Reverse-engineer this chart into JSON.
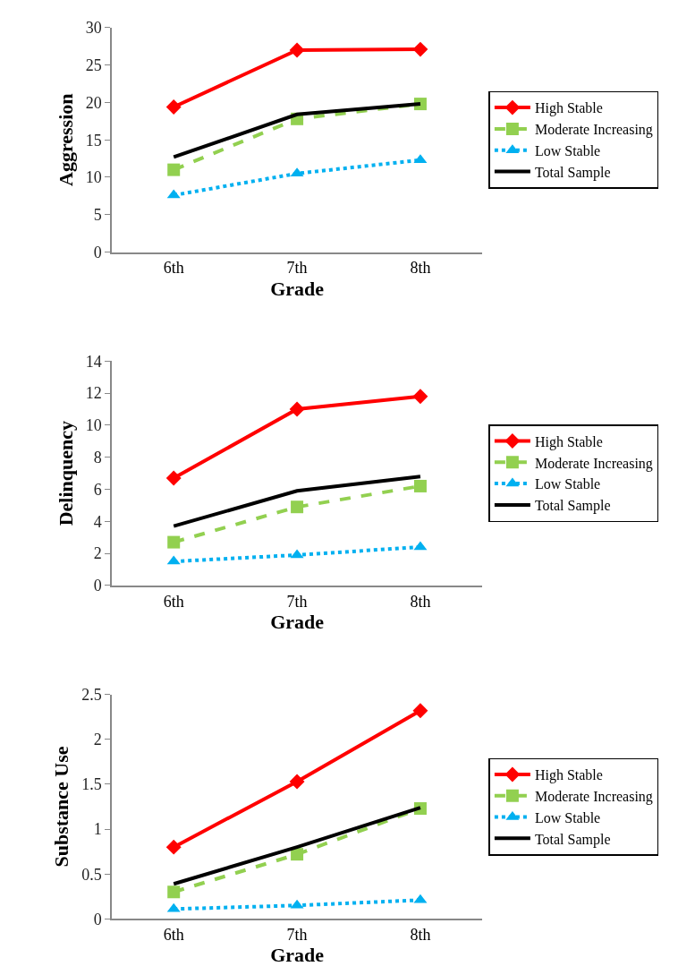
{
  "chart_data": [
    {
      "type": "line",
      "xlabel": "Grade",
      "ylabel": "Aggression",
      "categories": [
        "6th",
        "7th",
        "8th"
      ],
      "ylim": [
        0,
        30
      ],
      "yticks": [
        0,
        5,
        10,
        15,
        20,
        25,
        30
      ],
      "legend": "right",
      "series": [
        {
          "name": "High Stable",
          "color": "#ff0000",
          "marker": "diamond",
          "line_style": "solid",
          "values": [
            19.4,
            27.0,
            27.1
          ]
        },
        {
          "name": "Moderate Increasing",
          "color": "#92d050",
          "marker": "square",
          "line_style": "dashed",
          "values": [
            11.0,
            17.8,
            19.8
          ]
        },
        {
          "name": "Low Stable",
          "color": "#00b0f0",
          "marker": "triangle",
          "line_style": "dotted",
          "values": [
            7.6,
            10.5,
            12.3
          ]
        },
        {
          "name": "Total Sample",
          "color": "#000000",
          "marker": "none",
          "line_style": "solid",
          "values": [
            12.7,
            18.4,
            19.8
          ]
        }
      ]
    },
    {
      "type": "line",
      "xlabel": "Grade",
      "ylabel": "Delinquency",
      "categories": [
        "6th",
        "7th",
        "8th"
      ],
      "ylim": [
        0,
        14
      ],
      "yticks": [
        0,
        2,
        4,
        6,
        8,
        10,
        12,
        14
      ],
      "legend": "right",
      "series": [
        {
          "name": "High Stable",
          "color": "#ff0000",
          "marker": "diamond",
          "line_style": "solid",
          "values": [
            6.7,
            11.0,
            11.8
          ]
        },
        {
          "name": "Moderate Increasing",
          "color": "#92d050",
          "marker": "square",
          "line_style": "dashed",
          "values": [
            2.7,
            4.9,
            6.2
          ]
        },
        {
          "name": "Low Stable",
          "color": "#00b0f0",
          "marker": "triangle",
          "line_style": "dotted",
          "values": [
            1.5,
            1.9,
            2.4
          ]
        },
        {
          "name": "Total Sample",
          "color": "#000000",
          "marker": "none",
          "line_style": "solid",
          "values": [
            3.7,
            5.9,
            6.8
          ]
        }
      ]
    },
    {
      "type": "line",
      "xlabel": "Grade",
      "ylabel": "Substance Use",
      "categories": [
        "6th",
        "7th",
        "8th"
      ],
      "ylim": [
        0,
        2.5
      ],
      "yticks": [
        0,
        0.5,
        1,
        1.5,
        2,
        2.5
      ],
      "legend": "right",
      "series": [
        {
          "name": "High Stable",
          "color": "#ff0000",
          "marker": "diamond",
          "line_style": "solid",
          "values": [
            0.8,
            1.53,
            2.32
          ]
        },
        {
          "name": "Moderate Increasing",
          "color": "#92d050",
          "marker": "square",
          "line_style": "dashed",
          "values": [
            0.3,
            0.72,
            1.23
          ]
        },
        {
          "name": "Low Stable",
          "color": "#00b0f0",
          "marker": "triangle",
          "line_style": "dotted",
          "values": [
            0.11,
            0.15,
            0.21
          ]
        },
        {
          "name": "Total Sample",
          "color": "#000000",
          "marker": "none",
          "line_style": "solid",
          "values": [
            0.39,
            0.8,
            1.24
          ]
        }
      ]
    }
  ]
}
